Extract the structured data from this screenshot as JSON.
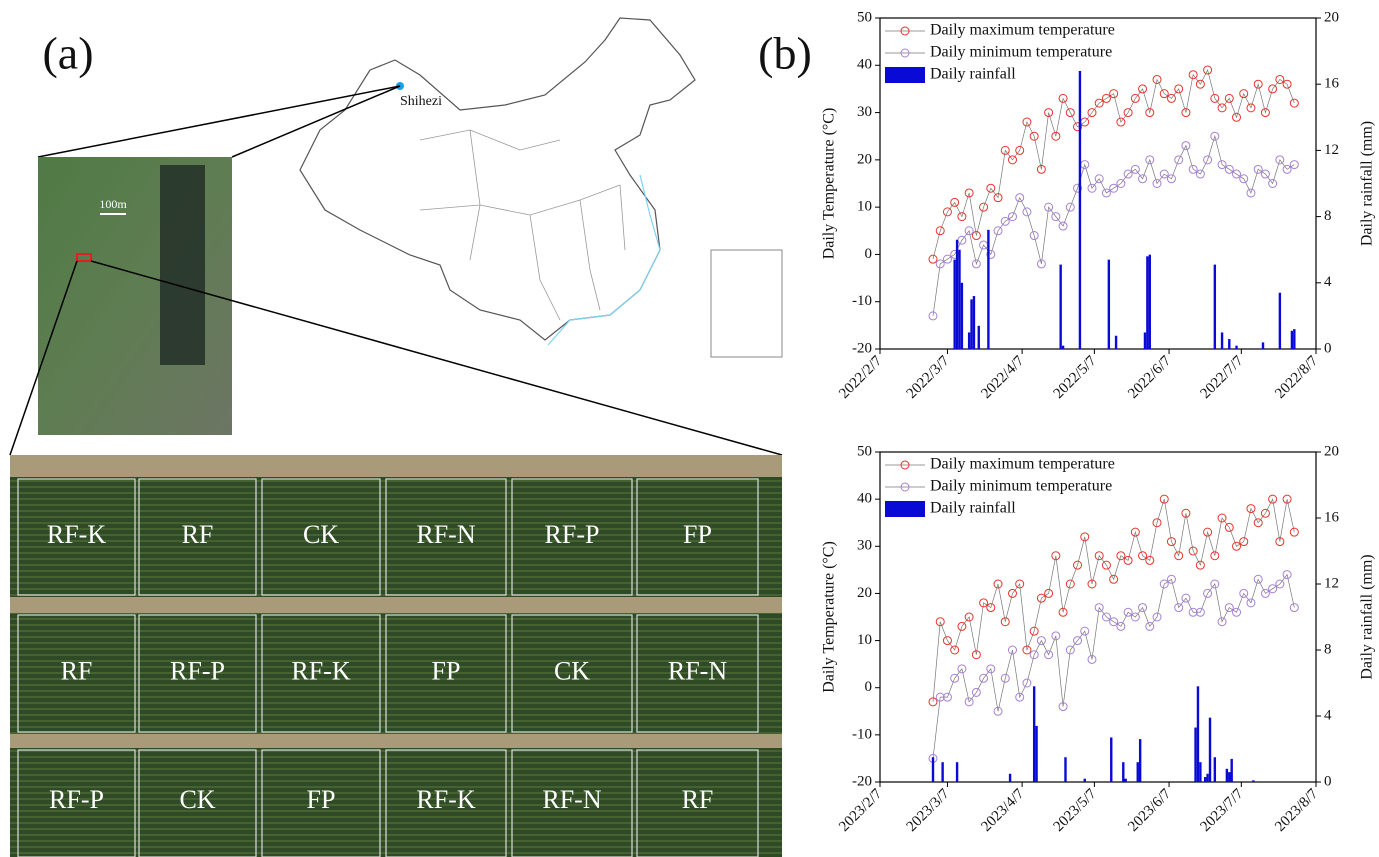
{
  "panel_a": {
    "label": "(a)",
    "location": "Shihezi",
    "scale_bar": "100m",
    "plots": [
      [
        "RF-K",
        "RF",
        "CK",
        "RF-N",
        "RF-P",
        "FP"
      ],
      [
        "RF",
        "RF-P",
        "RF-K",
        "FP",
        "CK",
        "RF-N"
      ],
      [
        "RF-P",
        "CK",
        "FP",
        "RF-K",
        "RF-N",
        "RF"
      ]
    ]
  },
  "panel_b_label": "(b)",
  "chart_data": [
    {
      "type": "line",
      "ylabel": "Daily Temperature (°C)",
      "y2label": "Daily rainfall (mm)",
      "xlim": [
        "2022/2/7",
        "2022/8/7"
      ],
      "xticks": [
        "2022/2/7",
        "2022/3/7",
        "2022/4/7",
        "2022/5/7",
        "2022/6/7",
        "2022/7/7",
        "2022/8/7"
      ],
      "ylim": [
        -20,
        50
      ],
      "yticks": [
        -20,
        -10,
        0,
        10,
        20,
        30,
        40,
        50
      ],
      "y2lim": [
        0,
        20
      ],
      "y2ticks": [
        0,
        4,
        8,
        12,
        16,
        20
      ],
      "x": [
        "2022/3/1",
        "2022/3/4",
        "2022/3/7",
        "2022/3/10",
        "2022/3/13",
        "2022/3/16",
        "2022/3/19",
        "2022/3/22",
        "2022/3/25",
        "2022/3/28",
        "2022/3/31",
        "2022/4/3",
        "2022/4/6",
        "2022/4/9",
        "2022/4/12",
        "2022/4/15",
        "2022/4/18",
        "2022/4/21",
        "2022/4/24",
        "2022/4/27",
        "2022/4/30",
        "2022/5/3",
        "2022/5/6",
        "2022/5/9",
        "2022/5/12",
        "2022/5/15",
        "2022/5/18",
        "2022/5/21",
        "2022/5/24",
        "2022/5/27",
        "2022/5/30",
        "2022/6/2",
        "2022/6/5",
        "2022/6/8",
        "2022/6/11",
        "2022/6/14",
        "2022/6/17",
        "2022/6/20",
        "2022/6/23",
        "2022/6/26",
        "2022/6/29",
        "2022/7/2",
        "2022/7/5",
        "2022/7/8",
        "2022/7/11",
        "2022/7/14",
        "2022/7/17",
        "2022/7/20",
        "2022/7/23",
        "2022/7/26",
        "2022/7/29"
      ],
      "series": [
        {
          "name": "Daily maximum temperature",
          "color": "#e8332a",
          "values": [
            -1,
            5,
            9,
            11,
            8,
            13,
            4,
            10,
            14,
            12,
            22,
            20,
            22,
            28,
            25,
            18,
            30,
            25,
            33,
            30,
            27,
            28,
            30,
            32,
            33,
            34,
            28,
            30,
            33,
            35,
            30,
            37,
            34,
            33,
            35,
            30,
            38,
            36,
            39,
            33,
            31,
            33,
            29,
            34,
            31,
            36,
            30,
            35,
            37,
            36,
            32
          ]
        },
        {
          "name": "Daily minimum temperature",
          "color": "#a77fd6",
          "values": [
            -13,
            -2,
            -1,
            0,
            3,
            5,
            -2,
            2,
            0,
            5,
            7,
            8,
            12,
            9,
            4,
            -2,
            10,
            8,
            6,
            10,
            14,
            19,
            14,
            16,
            13,
            14,
            15,
            17,
            18,
            16,
            20,
            15,
            17,
            16,
            20,
            23,
            18,
            17,
            20,
            25,
            19,
            18,
            17,
            16,
            13,
            18,
            17,
            15,
            20,
            18,
            19
          ]
        },
        {
          "name": "Daily rainfall",
          "type": "bar",
          "axis": "y2",
          "color": "#0a0ad6",
          "x": [
            "2022/3/10",
            "2022/3/11",
            "2022/3/12",
            "2022/3/13",
            "2022/3/16",
            "2022/3/17",
            "2022/3/18",
            "2022/3/20",
            "2022/3/24",
            "2022/4/23",
            "2022/4/24",
            "2022/5/1",
            "2022/5/13",
            "2022/5/16",
            "2022/5/28",
            "2022/5/29",
            "2022/5/30",
            "2022/6/26",
            "2022/6/29",
            "2022/7/2",
            "2022/7/5",
            "2022/7/16",
            "2022/7/23",
            "2022/7/28",
            "2022/7/29"
          ],
          "values": [
            5.4,
            6.6,
            6.0,
            4.0,
            1.0,
            3.0,
            3.2,
            1.4,
            7.2,
            5.1,
            0.2,
            16.8,
            5.4,
            0.8,
            1.0,
            5.6,
            5.7,
            5.1,
            1.0,
            0.6,
            0.2,
            0.4,
            3.4,
            1.1,
            1.2
          ]
        }
      ]
    },
    {
      "type": "line",
      "ylabel": "Daily Temperature (°C)",
      "y2label": "Daily rainfall (mm)",
      "xlim": [
        "2023/2/7",
        "2023/8/7"
      ],
      "xticks": [
        "2023/2/7",
        "2023/3/7",
        "2023/4/7",
        "2023/5/7",
        "2023/6/7",
        "2023/7/7",
        "2023/8/7"
      ],
      "ylim": [
        -20,
        50
      ],
      "yticks": [
        -20,
        -10,
        0,
        10,
        20,
        30,
        40,
        50
      ],
      "y2lim": [
        0,
        20
      ],
      "y2ticks": [
        0,
        4,
        8,
        12,
        16,
        20
      ],
      "x": [
        "2023/3/1",
        "2023/3/4",
        "2023/3/7",
        "2023/3/10",
        "2023/3/13",
        "2023/3/16",
        "2023/3/19",
        "2023/3/22",
        "2023/3/25",
        "2023/3/28",
        "2023/3/31",
        "2023/4/3",
        "2023/4/6",
        "2023/4/9",
        "2023/4/12",
        "2023/4/15",
        "2023/4/18",
        "2023/4/21",
        "2023/4/24",
        "2023/4/27",
        "2023/4/30",
        "2023/5/3",
        "2023/5/6",
        "2023/5/9",
        "2023/5/12",
        "2023/5/15",
        "2023/5/18",
        "2023/5/21",
        "2023/5/24",
        "2023/5/27",
        "2023/5/30",
        "2023/6/2",
        "2023/6/5",
        "2023/6/8",
        "2023/6/11",
        "2023/6/14",
        "2023/6/17",
        "2023/6/20",
        "2023/6/23",
        "2023/6/26",
        "2023/6/29",
        "2023/7/2",
        "2023/7/5",
        "2023/7/8",
        "2023/7/11",
        "2023/7/14",
        "2023/7/17",
        "2023/7/20",
        "2023/7/23",
        "2023/7/26",
        "2023/7/29"
      ],
      "series": [
        {
          "name": "Daily maximum temperature",
          "color": "#e8332a",
          "values": [
            -3,
            14,
            10,
            8,
            13,
            15,
            7,
            18,
            17,
            22,
            14,
            20,
            22,
            8,
            12,
            19,
            20,
            28,
            16,
            22,
            26,
            32,
            22,
            28,
            26,
            23,
            28,
            27,
            33,
            28,
            27,
            35,
            40,
            31,
            28,
            37,
            29,
            26,
            33,
            28,
            36,
            34,
            30,
            31,
            38,
            35,
            37,
            40,
            31,
            40,
            33
          ]
        },
        {
          "name": "Daily minimum temperature",
          "color": "#a77fd6",
          "values": [
            -15,
            -2,
            -2,
            2,
            4,
            -3,
            -1,
            2,
            4,
            -5,
            2,
            8,
            -2,
            1,
            7,
            10,
            7,
            11,
            -4,
            8,
            10,
            12,
            6,
            17,
            15,
            14,
            13,
            16,
            15,
            17,
            13,
            15,
            22,
            23,
            17,
            19,
            16,
            16,
            20,
            22,
            14,
            17,
            16,
            20,
            18,
            23,
            20,
            21,
            22,
            24,
            17
          ]
        },
        {
          "name": "Daily rainfall",
          "type": "bar",
          "axis": "y2",
          "color": "#0a0ad6",
          "x": [
            "2023/3/1",
            "2023/3/5",
            "2023/3/11",
            "2023/4/2",
            "2023/4/12",
            "2023/4/13",
            "2023/4/25",
            "2023/5/3",
            "2023/5/14",
            "2023/5/19",
            "2023/5/20",
            "2023/5/25",
            "2023/5/26",
            "2023/6/18",
            "2023/6/19",
            "2023/6/20",
            "2023/6/22",
            "2023/6/23",
            "2023/6/24",
            "2023/6/26",
            "2023/7/1",
            "2023/7/2",
            "2023/7/3",
            "2023/7/12"
          ],
          "values": [
            1.5,
            1.2,
            1.2,
            0.5,
            5.8,
            3.4,
            1.5,
            0.2,
            2.7,
            1.2,
            0.2,
            1.2,
            2.6,
            3.3,
            5.8,
            1.2,
            0.3,
            0.5,
            3.9,
            1.5,
            0.8,
            0.6,
            1.4,
            0.1
          ]
        }
      ]
    }
  ]
}
